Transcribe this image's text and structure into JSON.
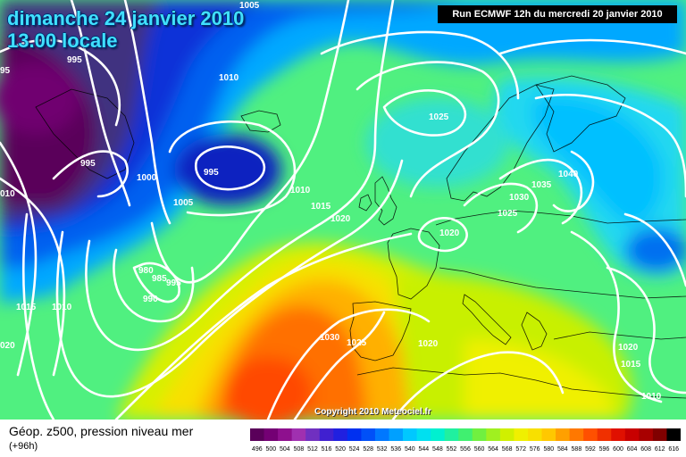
{
  "header": {
    "date_line": "dimanche 24 janvier 2010",
    "time_line": "13.00 locale",
    "run_info": "Run ECMWF 12h du mercredi 20 janvier 2010"
  },
  "copyright": "Copyright 2010 Meteociel.fr",
  "legend": {
    "title": "Géop. z500, pression niveau mer",
    "subtitle": "(+96h)",
    "scale_values": [
      "496",
      "500",
      "504",
      "508",
      "512",
      "516",
      "520",
      "524",
      "528",
      "532",
      "536",
      "540",
      "544",
      "548",
      "552",
      "556",
      "560",
      "564",
      "568",
      "572",
      "576",
      "580",
      "584",
      "588",
      "592",
      "596",
      "600",
      "604",
      "608",
      "612",
      "616"
    ],
    "scale_colors": [
      "#5a005a",
      "#740074",
      "#8e108e",
      "#a030b0",
      "#7030c0",
      "#4020d0",
      "#2020e0",
      "#0030f0",
      "#0050f8",
      "#0078ff",
      "#00a0ff",
      "#00c8ff",
      "#00e0f0",
      "#00f0d0",
      "#20f0a0",
      "#40f070",
      "#70f040",
      "#a0f020",
      "#d0f000",
      "#f0f000",
      "#f8e000",
      "#ffc800",
      "#ffa000",
      "#ff7800",
      "#ff5000",
      "#f03000",
      "#e01000",
      "#c80000",
      "#a80000",
      "#800000",
      "#000000"
    ]
  },
  "isobar_labels": [
    {
      "text": "1005",
      "key": "a"
    },
    {
      "text": "995",
      "key": "b"
    },
    {
      "text": "95",
      "key": "c"
    },
    {
      "text": "1010",
      "key": "d"
    },
    {
      "text": "995",
      "key": "e"
    },
    {
      "text": "1000",
      "key": "f"
    },
    {
      "text": "010",
      "key": "g"
    },
    {
      "text": "995",
      "key": "h"
    },
    {
      "text": "1005",
      "key": "i"
    },
    {
      "text": "1010",
      "key": "j"
    },
    {
      "text": "1015",
      "key": "k"
    },
    {
      "text": "1020",
      "key": "l"
    },
    {
      "text": "980",
      "key": "m"
    },
    {
      "text": "985",
      "key": "n"
    },
    {
      "text": "995",
      "key": "o"
    },
    {
      "text": "990",
      "key": "p"
    },
    {
      "text": "1015",
      "key": "q"
    },
    {
      "text": "1010",
      "key": "r"
    },
    {
      "text": "020",
      "key": "s"
    },
    {
      "text": "1030",
      "key": "t"
    },
    {
      "text": "1025",
      "key": "u"
    },
    {
      "text": "1020",
      "key": "v"
    },
    {
      "text": "1025",
      "key": "w"
    },
    {
      "text": "1020",
      "key": "x"
    },
    {
      "text": "1030",
      "key": "y"
    },
    {
      "text": "1035",
      "key": "z"
    },
    {
      "text": "1040",
      "key": "aa"
    },
    {
      "text": "1025",
      "key": "ab"
    },
    {
      "text": "1020",
      "key": "ac"
    },
    {
      "text": "1015",
      "key": "ad"
    },
    {
      "text": "1010",
      "key": "ae"
    }
  ]
}
